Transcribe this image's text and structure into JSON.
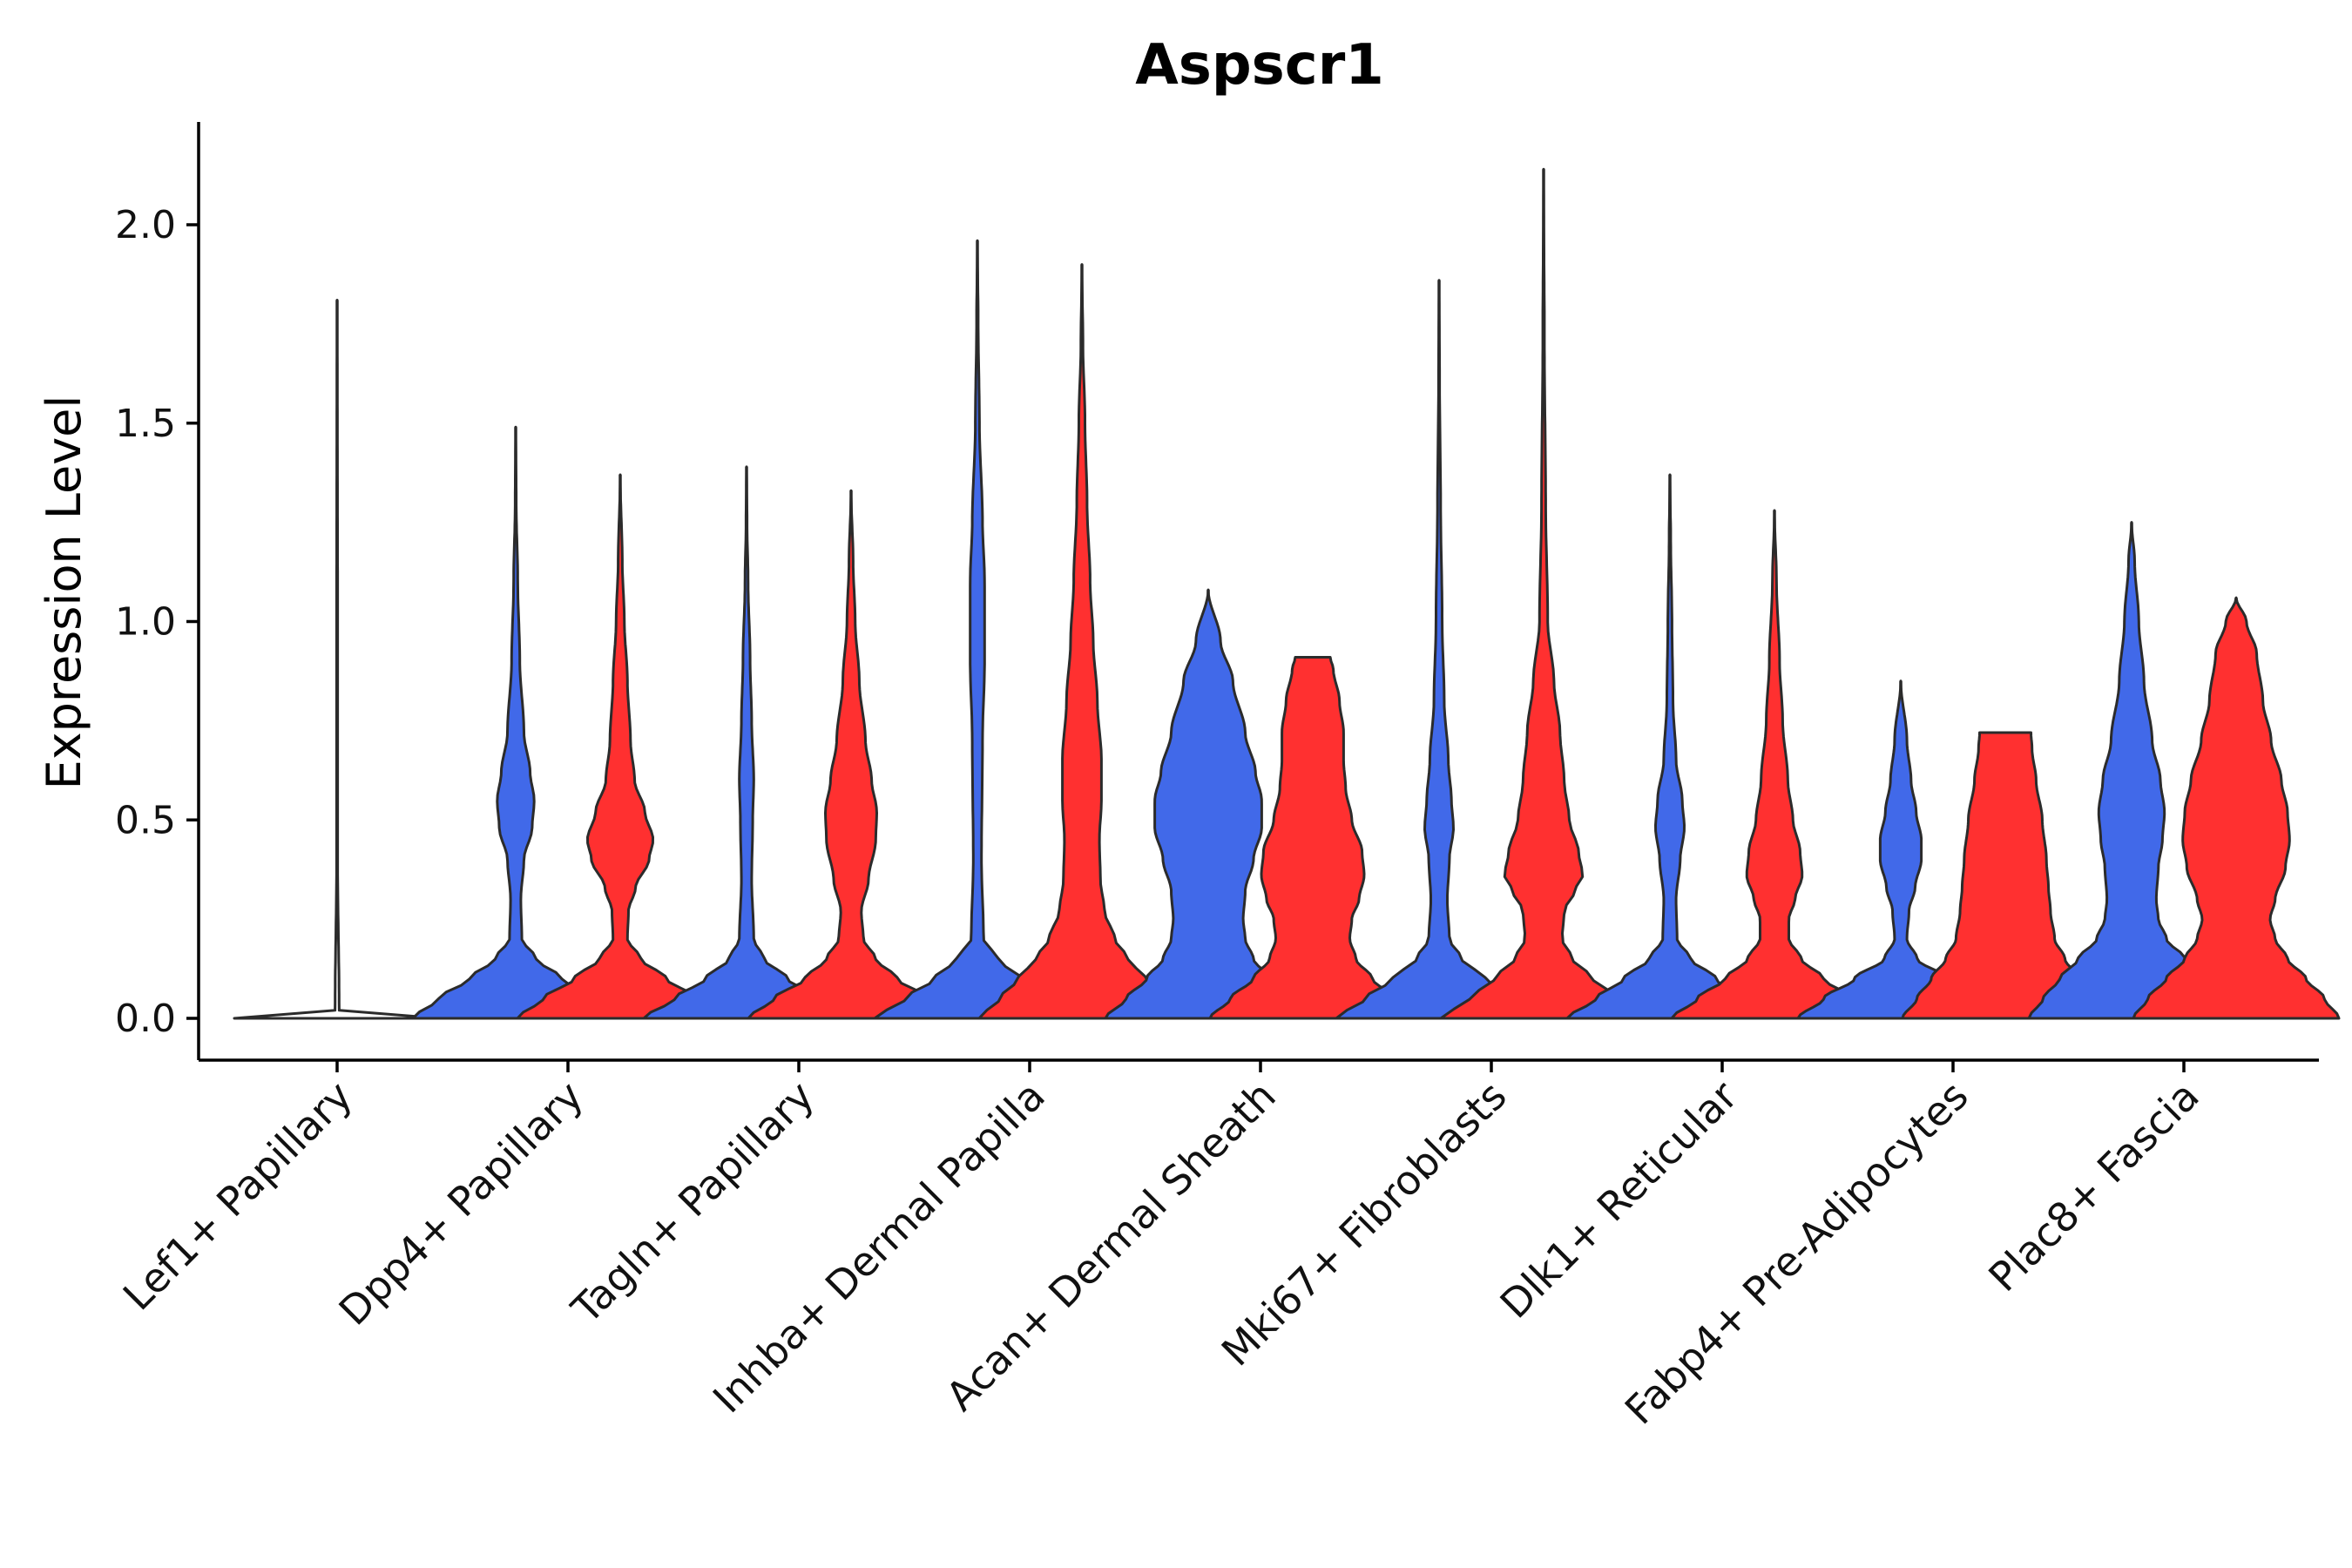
{
  "chart_data": {
    "type": "violin",
    "title": "Aspscr1",
    "xlabel": "",
    "ylabel": "Expression Level",
    "ylim": [
      -0.11,
      2.25
    ],
    "yticks": [
      0.0,
      0.5,
      1.0,
      1.5,
      2.0
    ],
    "ytick_labels": [
      "0.0",
      "0.5",
      "1.0",
      "1.5",
      "2.0"
    ],
    "split_colors": {
      "group1": "#4169E9",
      "group2": "#FF3030"
    },
    "categories": [
      "Lef1+ Papillary",
      "Dpp4+ Papillary",
      "Tagln+ Papillary",
      "Inhba+ Dermal Papilla",
      "Acan+ Dermal Sheath",
      "Mki67+ Fibroblasts",
      "Dlk1+ Reticular",
      "Fabp4+ Pre-Adipocytes",
      "Plac8+ Fascia"
    ],
    "violins": [
      {
        "category": "Lef1+ Papillary",
        "group": "single",
        "color": "#ffffff",
        "max": 1.81,
        "profile": [
          [
            0.0,
            1.0
          ],
          [
            0.02,
            0.02
          ],
          [
            0.4,
            0.005
          ],
          [
            1.0,
            0.005
          ],
          [
            1.81,
            0.0
          ]
        ]
      },
      {
        "category": "Dpp4+ Papillary",
        "group": "group1",
        "color": "#4169E9",
        "max": 1.49,
        "profile": [
          [
            0.0,
            1.0
          ],
          [
            0.05,
            0.75
          ],
          [
            0.1,
            0.45
          ],
          [
            0.15,
            0.2
          ],
          [
            0.2,
            0.06
          ],
          [
            0.3,
            0.05
          ],
          [
            0.4,
            0.08
          ],
          [
            0.48,
            0.16
          ],
          [
            0.55,
            0.18
          ],
          [
            0.62,
            0.14
          ],
          [
            0.72,
            0.08
          ],
          [
            0.9,
            0.04
          ],
          [
            1.1,
            0.02
          ],
          [
            1.3,
            0.005
          ],
          [
            1.49,
            0.0
          ]
        ]
      },
      {
        "category": "Dpp4+ Papillary",
        "group": "group2",
        "color": "#FF3030",
        "max": 1.37,
        "profile": [
          [
            0.0,
            1.0
          ],
          [
            0.05,
            0.75
          ],
          [
            0.1,
            0.45
          ],
          [
            0.15,
            0.2
          ],
          [
            0.2,
            0.07
          ],
          [
            0.27,
            0.08
          ],
          [
            0.33,
            0.15
          ],
          [
            0.4,
            0.28
          ],
          [
            0.45,
            0.32
          ],
          [
            0.52,
            0.24
          ],
          [
            0.6,
            0.14
          ],
          [
            0.7,
            0.1
          ],
          [
            0.85,
            0.07
          ],
          [
            1.0,
            0.04
          ],
          [
            1.15,
            0.02
          ],
          [
            1.37,
            0.0
          ]
        ]
      },
      {
        "category": "Tagln+ Papillary",
        "group": "group1",
        "color": "#4169E9",
        "max": 1.39,
        "profile": [
          [
            0.0,
            1.0
          ],
          [
            0.05,
            0.7
          ],
          [
            0.1,
            0.4
          ],
          [
            0.15,
            0.17
          ],
          [
            0.2,
            0.07
          ],
          [
            0.35,
            0.05
          ],
          [
            0.5,
            0.06
          ],
          [
            0.6,
            0.07
          ],
          [
            0.75,
            0.05
          ],
          [
            0.9,
            0.035
          ],
          [
            1.1,
            0.015
          ],
          [
            1.25,
            0.005
          ],
          [
            1.39,
            0.0
          ]
        ]
      },
      {
        "category": "Tagln+ Papillary",
        "group": "group2",
        "color": "#FF3030",
        "max": 1.33,
        "profile": [
          [
            0.0,
            1.0
          ],
          [
            0.05,
            0.75
          ],
          [
            0.1,
            0.45
          ],
          [
            0.15,
            0.24
          ],
          [
            0.2,
            0.12
          ],
          [
            0.27,
            0.1
          ],
          [
            0.35,
            0.17
          ],
          [
            0.45,
            0.24
          ],
          [
            0.52,
            0.25
          ],
          [
            0.6,
            0.2
          ],
          [
            0.7,
            0.14
          ],
          [
            0.85,
            0.08
          ],
          [
            1.0,
            0.04
          ],
          [
            1.15,
            0.02
          ],
          [
            1.33,
            0.0
          ]
        ]
      },
      {
        "category": "Inhba+ Dermal Papilla",
        "group": "group1",
        "color": "#4169E9",
        "max": 1.96,
        "profile": [
          [
            0.0,
            1.0
          ],
          [
            0.05,
            0.7
          ],
          [
            0.1,
            0.42
          ],
          [
            0.15,
            0.2
          ],
          [
            0.2,
            0.06
          ],
          [
            0.4,
            0.04
          ],
          [
            0.7,
            0.05
          ],
          [
            0.9,
            0.07
          ],
          [
            1.1,
            0.07
          ],
          [
            1.25,
            0.05
          ],
          [
            1.5,
            0.02
          ],
          [
            1.75,
            0.008
          ],
          [
            1.96,
            0.0
          ]
        ]
      },
      {
        "category": "Inhba+ Dermal Papilla",
        "group": "group2",
        "color": "#FF3030",
        "max": 1.9,
        "profile": [
          [
            0.0,
            1.0
          ],
          [
            0.05,
            0.8
          ],
          [
            0.1,
            0.62
          ],
          [
            0.15,
            0.45
          ],
          [
            0.2,
            0.32
          ],
          [
            0.27,
            0.22
          ],
          [
            0.35,
            0.18
          ],
          [
            0.45,
            0.17
          ],
          [
            0.55,
            0.19
          ],
          [
            0.65,
            0.19
          ],
          [
            0.8,
            0.15
          ],
          [
            0.95,
            0.11
          ],
          [
            1.1,
            0.08
          ],
          [
            1.3,
            0.05
          ],
          [
            1.5,
            0.03
          ],
          [
            1.7,
            0.01
          ],
          [
            1.9,
            0.0
          ]
        ]
      },
      {
        "category": "Acan+ Dermal Sheath",
        "group": "group1",
        "color": "#4169E9",
        "max": 1.08,
        "profile": [
          [
            0.0,
            1.0
          ],
          [
            0.05,
            0.8
          ],
          [
            0.1,
            0.6
          ],
          [
            0.15,
            0.44
          ],
          [
            0.2,
            0.36
          ],
          [
            0.25,
            0.34
          ],
          [
            0.32,
            0.36
          ],
          [
            0.4,
            0.44
          ],
          [
            0.48,
            0.52
          ],
          [
            0.55,
            0.52
          ],
          [
            0.62,
            0.46
          ],
          [
            0.72,
            0.36
          ],
          [
            0.85,
            0.24
          ],
          [
            0.95,
            0.12
          ],
          [
            1.08,
            0.0
          ]
        ]
      },
      {
        "category": "Acan+ Dermal Sheath",
        "group": "group2",
        "color": "#FF3030",
        "max": 0.91,
        "profile": [
          [
            0.0,
            1.0
          ],
          [
            0.05,
            0.8
          ],
          [
            0.1,
            0.58
          ],
          [
            0.15,
            0.42
          ],
          [
            0.2,
            0.36
          ],
          [
            0.25,
            0.38
          ],
          [
            0.3,
            0.45
          ],
          [
            0.36,
            0.5
          ],
          [
            0.42,
            0.48
          ],
          [
            0.5,
            0.38
          ],
          [
            0.58,
            0.32
          ],
          [
            0.65,
            0.3
          ],
          [
            0.72,
            0.3
          ],
          [
            0.8,
            0.26
          ],
          [
            0.88,
            0.2
          ],
          [
            0.91,
            0.17
          ]
        ]
      },
      {
        "category": "Mki67+ Fibroblasts",
        "group": "group1",
        "color": "#4169E9",
        "max": 1.86,
        "profile": [
          [
            0.0,
            1.0
          ],
          [
            0.05,
            0.72
          ],
          [
            0.1,
            0.45
          ],
          [
            0.15,
            0.22
          ],
          [
            0.2,
            0.1
          ],
          [
            0.3,
            0.08
          ],
          [
            0.4,
            0.1
          ],
          [
            0.48,
            0.14
          ],
          [
            0.55,
            0.12
          ],
          [
            0.65,
            0.09
          ],
          [
            0.8,
            0.05
          ],
          [
            1.0,
            0.03
          ],
          [
            1.3,
            0.015
          ],
          [
            1.6,
            0.005
          ],
          [
            1.86,
            0.0
          ]
        ]
      },
      {
        "category": "Mki67+ Fibroblasts",
        "group": "group2",
        "color": "#FF3030",
        "max": 2.14,
        "profile": [
          [
            0.0,
            1.0
          ],
          [
            0.05,
            0.72
          ],
          [
            0.1,
            0.48
          ],
          [
            0.15,
            0.28
          ],
          [
            0.2,
            0.18
          ],
          [
            0.27,
            0.2
          ],
          [
            0.32,
            0.3
          ],
          [
            0.36,
            0.38
          ],
          [
            0.42,
            0.34
          ],
          [
            0.5,
            0.25
          ],
          [
            0.6,
            0.2
          ],
          [
            0.72,
            0.16
          ],
          [
            0.85,
            0.1
          ],
          [
            1.0,
            0.04
          ],
          [
            1.3,
            0.02
          ],
          [
            1.7,
            0.008
          ],
          [
            2.14,
            0.0
          ]
        ]
      },
      {
        "category": "Dlk1+ Reticular",
        "group": "group1",
        "color": "#4169E9",
        "max": 1.37,
        "profile": [
          [
            0.0,
            1.0
          ],
          [
            0.05,
            0.72
          ],
          [
            0.1,
            0.45
          ],
          [
            0.15,
            0.2
          ],
          [
            0.2,
            0.07
          ],
          [
            0.3,
            0.06
          ],
          [
            0.4,
            0.1
          ],
          [
            0.48,
            0.14
          ],
          [
            0.55,
            0.12
          ],
          [
            0.65,
            0.06
          ],
          [
            0.8,
            0.03
          ],
          [
            1.0,
            0.02
          ],
          [
            1.2,
            0.008
          ],
          [
            1.37,
            0.0
          ]
        ]
      },
      {
        "category": "Dlk1+ Reticular",
        "group": "group2",
        "color": "#FF3030",
        "max": 1.28,
        "profile": [
          [
            0.0,
            1.0
          ],
          [
            0.05,
            0.75
          ],
          [
            0.1,
            0.48
          ],
          [
            0.15,
            0.26
          ],
          [
            0.2,
            0.14
          ],
          [
            0.25,
            0.14
          ],
          [
            0.3,
            0.2
          ],
          [
            0.36,
            0.27
          ],
          [
            0.42,
            0.25
          ],
          [
            0.5,
            0.18
          ],
          [
            0.6,
            0.13
          ],
          [
            0.75,
            0.08
          ],
          [
            0.9,
            0.05
          ],
          [
            1.1,
            0.02
          ],
          [
            1.28,
            0.0
          ]
        ]
      },
      {
        "category": "Fabp4+ Pre-Adipocytes",
        "group": "group1",
        "color": "#4169E9",
        "max": 0.85,
        "profile": [
          [
            0.0,
            1.0
          ],
          [
            0.05,
            0.75
          ],
          [
            0.1,
            0.45
          ],
          [
            0.15,
            0.16
          ],
          [
            0.2,
            0.06
          ],
          [
            0.27,
            0.08
          ],
          [
            0.33,
            0.14
          ],
          [
            0.4,
            0.2
          ],
          [
            0.45,
            0.2
          ],
          [
            0.52,
            0.15
          ],
          [
            0.6,
            0.1
          ],
          [
            0.7,
            0.06
          ],
          [
            0.85,
            0.0
          ]
        ]
      },
      {
        "category": "Fabp4+ Pre-Adipocytes",
        "group": "group2",
        "color": "#FF3030",
        "max": 0.72,
        "profile": [
          [
            0.0,
            1.0
          ],
          [
            0.05,
            0.86
          ],
          [
            0.1,
            0.72
          ],
          [
            0.15,
            0.58
          ],
          [
            0.2,
            0.48
          ],
          [
            0.27,
            0.44
          ],
          [
            0.33,
            0.42
          ],
          [
            0.4,
            0.4
          ],
          [
            0.5,
            0.36
          ],
          [
            0.6,
            0.3
          ],
          [
            0.68,
            0.26
          ],
          [
            0.72,
            0.25
          ]
        ]
      },
      {
        "category": "Plac8+ Fascia",
        "group": "group1",
        "color": "#4169E9",
        "max": 1.25,
        "profile": [
          [
            0.0,
            1.0
          ],
          [
            0.05,
            0.86
          ],
          [
            0.1,
            0.7
          ],
          [
            0.15,
            0.52
          ],
          [
            0.2,
            0.34
          ],
          [
            0.25,
            0.26
          ],
          [
            0.3,
            0.24
          ],
          [
            0.38,
            0.26
          ],
          [
            0.45,
            0.3
          ],
          [
            0.52,
            0.32
          ],
          [
            0.6,
            0.28
          ],
          [
            0.7,
            0.2
          ],
          [
            0.85,
            0.12
          ],
          [
            1.0,
            0.07
          ],
          [
            1.15,
            0.03
          ],
          [
            1.25,
            0.0
          ]
        ]
      },
      {
        "category": "Plac8+ Fascia",
        "group": "group2",
        "color": "#FF3030",
        "max": 1.06,
        "profile": [
          [
            0.0,
            1.0
          ],
          [
            0.05,
            0.86
          ],
          [
            0.1,
            0.68
          ],
          [
            0.15,
            0.5
          ],
          [
            0.2,
            0.38
          ],
          [
            0.25,
            0.33
          ],
          [
            0.3,
            0.38
          ],
          [
            0.38,
            0.48
          ],
          [
            0.45,
            0.52
          ],
          [
            0.52,
            0.5
          ],
          [
            0.6,
            0.44
          ],
          [
            0.7,
            0.34
          ],
          [
            0.8,
            0.26
          ],
          [
            0.92,
            0.2
          ],
          [
            1.0,
            0.1
          ],
          [
            1.06,
            0.0
          ]
        ]
      }
    ]
  }
}
